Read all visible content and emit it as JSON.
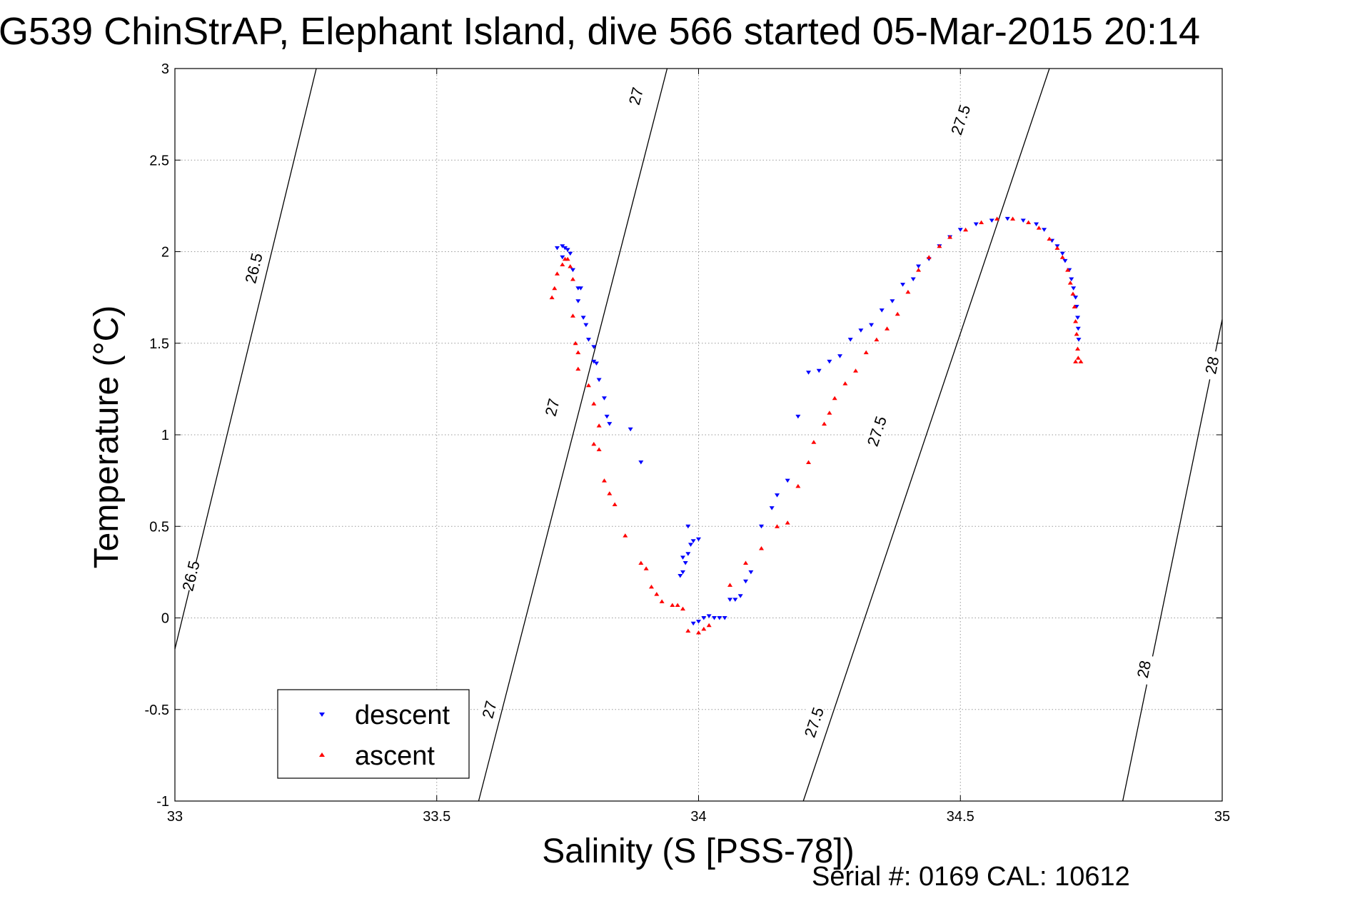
{
  "chart_data": {
    "type": "scatter",
    "title": "G539 ChinStrAP, Elephant Island, dive 566 started 05-Mar-2015 20:14",
    "xlabel": "Salinity (S [PSS-78])",
    "ylabel": "Temperature (°C)",
    "xlim": [
      33,
      35
    ],
    "ylim": [
      -1,
      3
    ],
    "grid": true,
    "legend_position": "bottom-left",
    "xticks": [
      33,
      33.5,
      34,
      34.5,
      35
    ],
    "xtick_labels": [
      "33",
      "33.5",
      "34",
      "34.5",
      "35"
    ],
    "yticks": [
      -1,
      -0.5,
      0,
      0.5,
      1,
      1.5,
      2,
      2.5,
      3
    ],
    "ytick_labels": [
      "-1",
      "-0.5",
      "0",
      "0.5",
      "1",
      "1.5",
      "2",
      "2.5",
      "3"
    ],
    "isopycnals": [
      {
        "label": "26.5",
        "points": [
          [
            33.0,
            -0.17
          ],
          [
            33.27,
            3.0
          ]
        ],
        "label_positions": [
          [
            33.15,
            1.91
          ],
          [
            33.03,
            0.23
          ]
        ]
      },
      {
        "label": "27",
        "points": [
          [
            33.58,
            -1.0
          ],
          [
            33.94,
            3.0
          ]
        ],
        "label_positions": [
          [
            33.88,
            2.85
          ],
          [
            33.72,
            1.15
          ],
          [
            33.6,
            -0.5
          ]
        ]
      },
      {
        "label": "27.5",
        "points": [
          [
            34.2,
            -1.0
          ],
          [
            34.67,
            3.0
          ]
        ],
        "label_positions": [
          [
            34.5,
            2.72
          ],
          [
            34.34,
            1.02
          ],
          [
            34.22,
            -0.57
          ]
        ]
      },
      {
        "label": "28",
        "points": [
          [
            34.81,
            -1.0
          ],
          [
            35.0,
            1.63
          ]
        ],
        "label_positions": [
          [
            34.98,
            1.38
          ],
          [
            34.85,
            -0.28
          ]
        ]
      }
    ],
    "series": [
      {
        "name": "descent",
        "color": "#0000ff",
        "marker": "triangle-down",
        "points": [
          [
            33.73,
            2.02
          ],
          [
            33.74,
            2.03
          ],
          [
            33.745,
            2.02
          ],
          [
            33.75,
            2.01
          ],
          [
            33.755,
            1.99
          ],
          [
            33.74,
            1.97
          ],
          [
            33.76,
            1.9
          ],
          [
            33.77,
            1.8
          ],
          [
            33.775,
            1.8
          ],
          [
            33.77,
            1.73
          ],
          [
            33.78,
            1.64
          ],
          [
            33.785,
            1.6
          ],
          [
            33.79,
            1.52
          ],
          [
            33.8,
            1.48
          ],
          [
            33.8,
            1.4
          ],
          [
            33.805,
            1.39
          ],
          [
            33.81,
            1.3
          ],
          [
            33.82,
            1.2
          ],
          [
            33.825,
            1.1
          ],
          [
            33.83,
            1.06
          ],
          [
            33.87,
            1.03
          ],
          [
            33.89,
            0.85
          ],
          [
            33.97,
            0.25
          ],
          [
            33.965,
            0.23
          ],
          [
            33.975,
            0.3
          ],
          [
            33.97,
            0.33
          ],
          [
            33.98,
            0.35
          ],
          [
            33.985,
            0.4
          ],
          [
            33.99,
            0.42
          ],
          [
            34.0,
            0.43
          ],
          [
            33.98,
            0.5
          ],
          [
            33.99,
            -0.03
          ],
          [
            34.0,
            -0.02
          ],
          [
            34.01,
            0.0
          ],
          [
            34.02,
            0.01
          ],
          [
            34.03,
            0.0
          ],
          [
            34.04,
            0.0
          ],
          [
            34.05,
            0.0
          ],
          [
            34.06,
            0.1
          ],
          [
            34.07,
            0.1
          ],
          [
            34.08,
            0.12
          ],
          [
            34.09,
            0.2
          ],
          [
            34.1,
            0.25
          ],
          [
            34.12,
            0.5
          ],
          [
            34.14,
            0.6
          ],
          [
            34.15,
            0.67
          ],
          [
            34.17,
            0.75
          ],
          [
            34.19,
            1.1
          ],
          [
            34.21,
            1.34
          ],
          [
            34.23,
            1.35
          ],
          [
            34.25,
            1.4
          ],
          [
            34.27,
            1.43
          ],
          [
            34.29,
            1.52
          ],
          [
            34.31,
            1.57
          ],
          [
            34.33,
            1.6
          ],
          [
            34.35,
            1.68
          ],
          [
            34.37,
            1.73
          ],
          [
            34.39,
            1.82
          ],
          [
            34.41,
            1.85
          ],
          [
            34.42,
            1.92
          ],
          [
            34.44,
            1.96
          ],
          [
            34.46,
            2.03
          ],
          [
            34.48,
            2.08
          ],
          [
            34.5,
            2.12
          ],
          [
            34.53,
            2.15
          ],
          [
            34.56,
            2.17
          ],
          [
            34.59,
            2.18
          ],
          [
            34.62,
            2.17
          ],
          [
            34.645,
            2.15
          ],
          [
            34.66,
            2.12
          ],
          [
            34.675,
            2.06
          ],
          [
            34.685,
            2.03
          ],
          [
            34.695,
            1.99
          ],
          [
            34.7,
            1.95
          ],
          [
            34.708,
            1.9
          ],
          [
            34.712,
            1.85
          ],
          [
            34.716,
            1.8
          ],
          [
            34.72,
            1.75
          ],
          [
            34.722,
            1.7
          ],
          [
            34.724,
            1.64
          ],
          [
            34.725,
            1.58
          ],
          [
            34.726,
            1.52
          ]
        ]
      },
      {
        "name": "ascent",
        "color": "#ff0000",
        "marker": "triangle-up",
        "points": [
          [
            33.72,
            1.75
          ],
          [
            33.725,
            1.8
          ],
          [
            33.73,
            1.88
          ],
          [
            33.74,
            1.93
          ],
          [
            33.745,
            1.96
          ],
          [
            33.75,
            1.96
          ],
          [
            33.755,
            1.92
          ],
          [
            33.76,
            1.85
          ],
          [
            33.76,
            1.65
          ],
          [
            33.765,
            1.5
          ],
          [
            33.77,
            1.45
          ],
          [
            33.77,
            1.36
          ],
          [
            33.79,
            1.27
          ],
          [
            33.8,
            1.17
          ],
          [
            33.81,
            1.05
          ],
          [
            33.8,
            0.95
          ],
          [
            33.81,
            0.92
          ],
          [
            33.82,
            0.75
          ],
          [
            33.83,
            0.68
          ],
          [
            33.84,
            0.62
          ],
          [
            33.86,
            0.45
          ],
          [
            33.89,
            0.3
          ],
          [
            33.9,
            0.27
          ],
          [
            33.91,
            0.17
          ],
          [
            33.92,
            0.13
          ],
          [
            33.93,
            0.09
          ],
          [
            33.95,
            0.07
          ],
          [
            33.96,
            0.07
          ],
          [
            33.97,
            0.05
          ],
          [
            33.98,
            -0.07
          ],
          [
            34.0,
            -0.08
          ],
          [
            34.01,
            -0.06
          ],
          [
            34.02,
            -0.04
          ],
          [
            34.06,
            0.18
          ],
          [
            34.09,
            0.3
          ],
          [
            34.12,
            0.38
          ],
          [
            34.15,
            0.5
          ],
          [
            34.17,
            0.52
          ],
          [
            34.19,
            0.72
          ],
          [
            34.21,
            0.85
          ],
          [
            34.22,
            0.96
          ],
          [
            34.24,
            1.06
          ],
          [
            34.25,
            1.12
          ],
          [
            34.26,
            1.2
          ],
          [
            34.28,
            1.28
          ],
          [
            34.3,
            1.35
          ],
          [
            34.32,
            1.45
          ],
          [
            34.34,
            1.52
          ],
          [
            34.36,
            1.58
          ],
          [
            34.38,
            1.66
          ],
          [
            34.4,
            1.78
          ],
          [
            34.42,
            1.9
          ],
          [
            34.44,
            1.97
          ],
          [
            34.46,
            2.03
          ],
          [
            34.48,
            2.08
          ],
          [
            34.51,
            2.12
          ],
          [
            34.54,
            2.16
          ],
          [
            34.57,
            2.18
          ],
          [
            34.6,
            2.18
          ],
          [
            34.63,
            2.16
          ],
          [
            34.65,
            2.13
          ],
          [
            34.67,
            2.07
          ],
          [
            34.685,
            2.02
          ],
          [
            34.695,
            1.97
          ],
          [
            34.705,
            1.9
          ],
          [
            34.71,
            1.83
          ],
          [
            34.715,
            1.77
          ],
          [
            34.718,
            1.7
          ],
          [
            34.72,
            1.62
          ],
          [
            34.722,
            1.55
          ],
          [
            34.724,
            1.47
          ],
          [
            34.725,
            1.42
          ],
          [
            34.72,
            1.4
          ],
          [
            34.73,
            1.4
          ]
        ]
      }
    ]
  },
  "footer": {
    "serial_text": "Serial #: 0169 CAL: 10612"
  },
  "colors": {
    "descent": "#0000ff",
    "ascent": "#ff0000",
    "axis": "#000000",
    "grid": "#999999"
  }
}
